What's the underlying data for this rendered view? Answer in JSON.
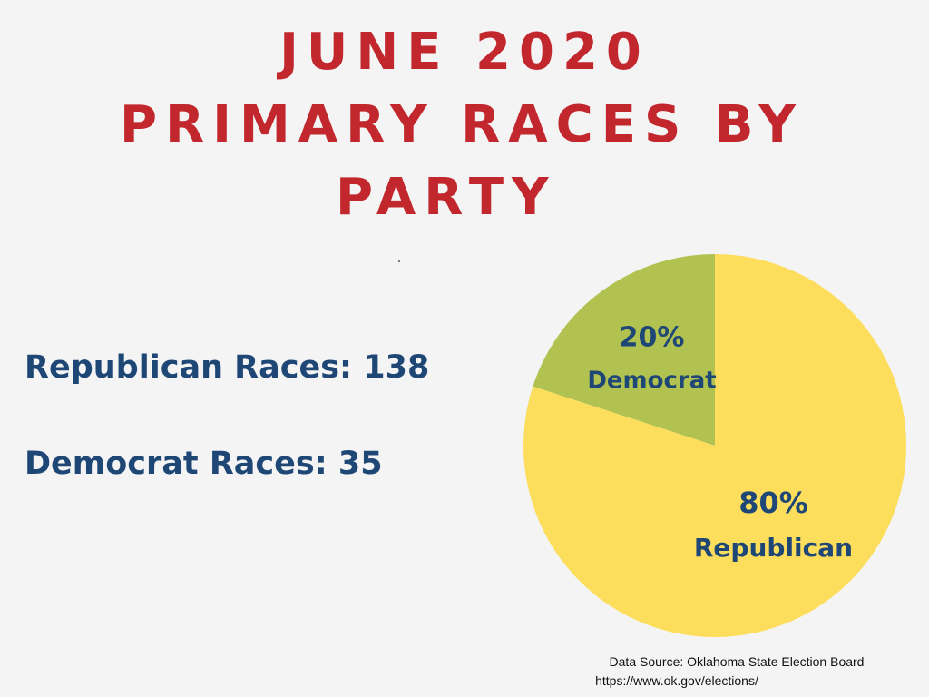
{
  "title": {
    "line1": "JUNE 2020",
    "line2": "PRIMARY RACES BY",
    "line3": "PARTY"
  },
  "stats": {
    "republican": "Republican Races: 138",
    "democrat": "Democrat Races: 35"
  },
  "chart_data": {
    "type": "pie",
    "title": "June 2020 Primary Races by Party",
    "slices": [
      {
        "name": "Democrat",
        "value": 20,
        "percent_label": "20%",
        "color": "#b2c251"
      },
      {
        "name": "Republican",
        "value": 80,
        "percent_label": "80%",
        "color": "#fddd5c"
      }
    ],
    "start": "12 o'clock",
    "direction": "counterclockwise"
  },
  "source": {
    "line1": "Data Source: Oklahoma State Election Board",
    "line2": "https://www.ok.gov/elections/"
  },
  "colors": {
    "title": "#c1272d",
    "text": "#1f4776",
    "background": "#f4f4f4"
  }
}
